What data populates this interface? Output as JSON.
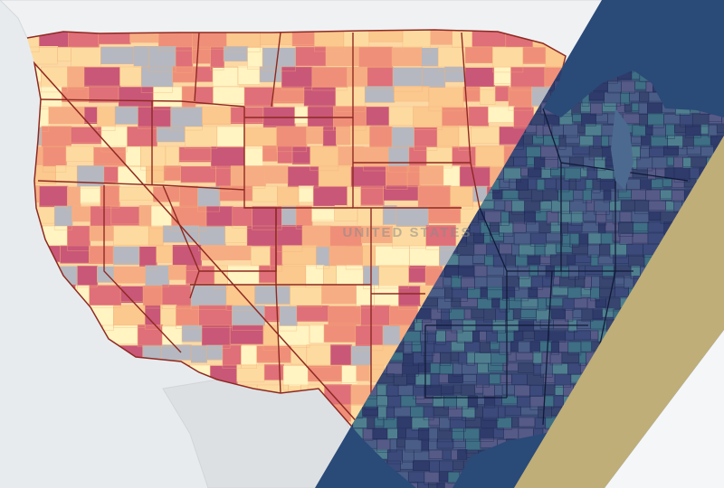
{
  "map": {
    "country_label": "UNITED STATES",
    "subject": "choropleth-counties",
    "west_palette": [
      "#fff4c2",
      "#fddba0",
      "#fbc88e",
      "#f7ad84",
      "#ef8f79",
      "#df6f78",
      "#c95777",
      "#b5b8c0"
    ],
    "west_background": "#fcd8a4",
    "state_border_color": "#8e2a22",
    "east_palette": [
      "#2f3b6b",
      "#3b4a7a",
      "#4a5d86",
      "#3e6f84",
      "#4f7f8e",
      "#37456f",
      "#565a86"
    ],
    "east_background": "#3a4b74",
    "east_overlay_color": "#2a4a78",
    "ocean_color": "#e8ebee",
    "stripe_gold": "#bfae78",
    "stripe_navy": "#2f5077",
    "lake_color": "#4c6a90"
  }
}
